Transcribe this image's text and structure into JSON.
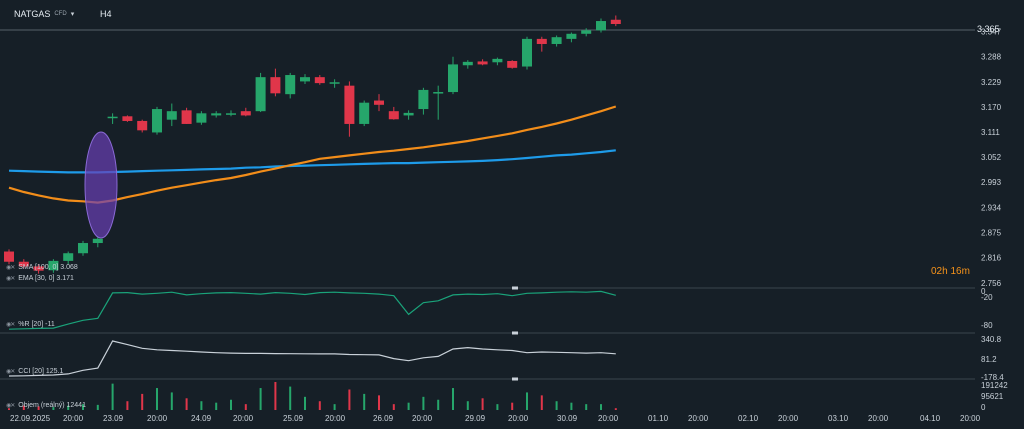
{
  "header": {
    "symbol": "NATGAS",
    "symbol_type": "CFD",
    "timeframe": "H4"
  },
  "countdown": "02h 16m",
  "price_badge": "3.365",
  "colors": {
    "background": "#161f27",
    "up": "#26a66b",
    "down": "#e0364a",
    "sma": "#1e9be9",
    "ema": "#f28d1a",
    "oscillator": "#1aa37a",
    "cci": "#c9d1d9",
    "highlight": "#6a3fb5"
  },
  "legends": {
    "sma": "SMA [100, 0] 3.068",
    "ema": "EMA [30, 0] 3.171",
    "williams": "%R [20] -11",
    "cci": "CCI [20] 125.1",
    "volume": "Objem (reálný) 12441"
  },
  "price_axis": [
    "3.347",
    "3.288",
    "3.229",
    "3.170",
    "3.111",
    "3.052",
    "2.993",
    "2.934",
    "2.875",
    "2.816",
    "2.756"
  ],
  "williams_axis": [
    "0",
    "-20",
    "-80"
  ],
  "cci_axis": [
    "340.8",
    "81.2",
    "-178.4"
  ],
  "volume_axis": [
    "191242",
    "95621",
    "0"
  ],
  "time_axis": [
    "22.09.2025",
    "20:00",
    "23.09",
    "20:00",
    "24.09",
    "20:00",
    "25.09",
    "20:00",
    "26.09",
    "20:00",
    "29.09",
    "20:00",
    "30.09",
    "20:00",
    "01.10",
    "20:00",
    "02.10",
    "20:00",
    "03.10",
    "20:00",
    "04.10",
    "20:00"
  ],
  "chart_data": {
    "type": "candlestick",
    "ylim": [
      2.756,
      3.365
    ],
    "candles": [
      {
        "o": 2.83,
        "h": 2.835,
        "l": 2.8,
        "c": 2.806
      },
      {
        "o": 2.806,
        "h": 2.812,
        "l": 2.79,
        "c": 2.795
      },
      {
        "o": 2.795,
        "h": 2.8,
        "l": 2.778,
        "c": 2.785
      },
      {
        "o": 2.786,
        "h": 2.812,
        "l": 2.78,
        "c": 2.808
      },
      {
        "o": 2.808,
        "h": 2.83,
        "l": 2.8,
        "c": 2.826
      },
      {
        "o": 2.826,
        "h": 2.855,
        "l": 2.82,
        "c": 2.85
      },
      {
        "o": 2.85,
        "h": 2.865,
        "l": 2.84,
        "c": 2.86
      },
      {
        "o": 3.145,
        "h": 3.155,
        "l": 3.13,
        "c": 3.147
      },
      {
        "o": 3.148,
        "h": 3.15,
        "l": 3.135,
        "c": 3.137
      },
      {
        "o": 3.137,
        "h": 3.14,
        "l": 3.11,
        "c": 3.115
      },
      {
        "o": 3.11,
        "h": 3.17,
        "l": 3.105,
        "c": 3.165
      },
      {
        "o": 3.14,
        "h": 3.178,
        "l": 3.125,
        "c": 3.16
      },
      {
        "o": 3.162,
        "h": 3.168,
        "l": 3.13,
        "c": 3.13
      },
      {
        "o": 3.133,
        "h": 3.16,
        "l": 3.128,
        "c": 3.155
      },
      {
        "o": 3.15,
        "h": 3.16,
        "l": 3.145,
        "c": 3.155
      },
      {
        "o": 3.155,
        "h": 3.162,
        "l": 3.148,
        "c": 3.155
      },
      {
        "o": 3.16,
        "h": 3.168,
        "l": 3.148,
        "c": 3.15
      },
      {
        "o": 3.16,
        "h": 3.25,
        "l": 3.158,
        "c": 3.24
      },
      {
        "o": 3.24,
        "h": 3.26,
        "l": 3.195,
        "c": 3.202
      },
      {
        "o": 3.2,
        "h": 3.25,
        "l": 3.19,
        "c": 3.245
      },
      {
        "o": 3.23,
        "h": 3.247,
        "l": 3.224,
        "c": 3.24
      },
      {
        "o": 3.24,
        "h": 3.245,
        "l": 3.222,
        "c": 3.226
      },
      {
        "o": 3.225,
        "h": 3.235,
        "l": 3.215,
        "c": 3.228
      },
      {
        "o": 3.22,
        "h": 3.23,
        "l": 3.1,
        "c": 3.13
      },
      {
        "o": 3.13,
        "h": 3.185,
        "l": 3.125,
        "c": 3.18
      },
      {
        "o": 3.185,
        "h": 3.2,
        "l": 3.16,
        "c": 3.175
      },
      {
        "o": 3.16,
        "h": 3.17,
        "l": 3.14,
        "c": 3.141
      },
      {
        "o": 3.15,
        "h": 3.162,
        "l": 3.14,
        "c": 3.156
      },
      {
        "o": 3.165,
        "h": 3.215,
        "l": 3.152,
        "c": 3.21
      },
      {
        "o": 3.205,
        "h": 3.22,
        "l": 3.14,
        "c": 3.205
      },
      {
        "o": 3.205,
        "h": 3.288,
        "l": 3.2,
        "c": 3.27
      },
      {
        "o": 3.268,
        "h": 3.28,
        "l": 3.26,
        "c": 3.276
      },
      {
        "o": 3.277,
        "h": 3.282,
        "l": 3.268,
        "c": 3.27
      },
      {
        "o": 3.275,
        "h": 3.286,
        "l": 3.268,
        "c": 3.283
      },
      {
        "o": 3.278,
        "h": 3.28,
        "l": 3.26,
        "c": 3.262
      },
      {
        "o": 3.265,
        "h": 3.335,
        "l": 3.258,
        "c": 3.33
      },
      {
        "o": 3.33,
        "h": 3.335,
        "l": 3.3,
        "c": 3.318
      },
      {
        "o": 3.318,
        "h": 3.338,
        "l": 3.312,
        "c": 3.334
      },
      {
        "o": 3.33,
        "h": 3.345,
        "l": 3.322,
        "c": 3.342
      },
      {
        "o": 3.342,
        "h": 3.355,
        "l": 3.336,
        "c": 3.35
      },
      {
        "o": 3.35,
        "h": 3.378,
        "l": 3.345,
        "c": 3.372
      },
      {
        "o": 3.375,
        "h": 3.385,
        "l": 3.36,
        "c": 3.365
      }
    ],
    "sma": [
      3.02,
      3.019,
      3.018,
      3.017,
      3.016,
      3.016,
      3.016,
      3.017,
      3.018,
      3.019,
      3.02,
      3.021,
      3.022,
      3.023,
      3.024,
      3.025,
      3.027,
      3.028,
      3.03,
      3.031,
      3.032,
      3.033,
      3.034,
      3.035,
      3.036,
      3.037,
      3.038,
      3.038,
      3.039,
      3.04,
      3.041,
      3.042,
      3.043,
      3.045,
      3.047,
      3.05,
      3.053,
      3.056,
      3.058,
      3.061,
      3.064,
      3.068
    ],
    "ema": [
      2.98,
      2.97,
      2.962,
      2.955,
      2.95,
      2.948,
      2.945,
      2.95,
      2.958,
      2.965,
      2.973,
      2.98,
      2.986,
      2.992,
      2.998,
      3.003,
      3.01,
      3.018,
      3.025,
      3.033,
      3.04,
      3.048,
      3.052,
      3.056,
      3.06,
      3.064,
      3.067,
      3.071,
      3.075,
      3.08,
      3.085,
      3.09,
      3.096,
      3.102,
      3.108,
      3.116,
      3.123,
      3.131,
      3.14,
      3.15,
      3.16,
      3.171
    ],
    "williams_r": [
      -98,
      -97,
      -96,
      -95,
      -85,
      -75,
      -70,
      -5,
      -4,
      -8,
      -6,
      -3,
      -10,
      -7,
      -5,
      -4,
      -6,
      -8,
      -4,
      -6,
      -9,
      -4,
      -3,
      -5,
      -6,
      -8,
      -12,
      -60,
      -30,
      -25,
      -10,
      -8,
      -9,
      -7,
      -12,
      -6,
      -5,
      -3,
      -2,
      -3,
      -1,
      -11
    ],
    "cci": [
      -178.4,
      -175,
      -170,
      -165,
      -150,
      -100,
      -70,
      300,
      250,
      200,
      180,
      170,
      160,
      150,
      140,
      135,
      130,
      130,
      128,
      126,
      125,
      124,
      123,
      115,
      113,
      110,
      60,
      30,
      70,
      90,
      190,
      210,
      190,
      180,
      170,
      140,
      150,
      145,
      140,
      135,
      140,
      125.1
    ],
    "volume": [
      12000,
      30000,
      25000,
      20000,
      30000,
      40000,
      35000,
      180000,
      60000,
      110000,
      150000,
      120000,
      80000,
      60000,
      50000,
      70000,
      40000,
      150000,
      191242,
      160000,
      90000,
      60000,
      40000,
      140000,
      110000,
      100000,
      40000,
      50000,
      90000,
      70000,
      150000,
      60000,
      80000,
      40000,
      50000,
      120000,
      100000,
      60000,
      50000,
      40000,
      40000,
      12441
    ]
  }
}
